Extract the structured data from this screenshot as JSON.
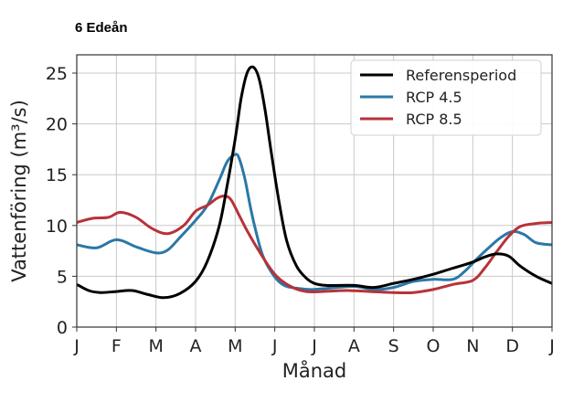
{
  "title": "6 Edeån",
  "chart_data": {
    "type": "line",
    "xlabel": "Månad",
    "ylabel": "Vattenföring (m³/s)",
    "x_ticks": [
      "J",
      "F",
      "M",
      "A",
      "M",
      "J",
      "J",
      "A",
      "S",
      "O",
      "N",
      "D",
      "J"
    ],
    "xlim": [
      0,
      12
    ],
    "ylim": [
      0,
      26.8
    ],
    "y_ticks": [
      0,
      5,
      10,
      15,
      20,
      25
    ],
    "grid": true,
    "legend_position": "top-right",
    "series": [
      {
        "name": "Referensperiod",
        "color": "#000000",
        "x": [
          0,
          0.3,
          0.6,
          1.0,
          1.4,
          1.8,
          2.2,
          2.6,
          3.0,
          3.3,
          3.6,
          3.8,
          4.0,
          4.15,
          4.3,
          4.45,
          4.6,
          4.75,
          4.9,
          5.1,
          5.3,
          5.55,
          5.8,
          6.0,
          6.3,
          7.0,
          7.5,
          8.0,
          8.5,
          9.0,
          9.5,
          10.0,
          10.3,
          10.6,
          10.9,
          11.2,
          11.6,
          12.0
        ],
        "values": [
          4.2,
          3.6,
          3.4,
          3.5,
          3.6,
          3.2,
          2.9,
          3.3,
          4.5,
          6.5,
          10.0,
          14.0,
          18.5,
          22.5,
          25.0,
          25.6,
          24.5,
          21.5,
          17.5,
          12.5,
          8.5,
          6.0,
          4.8,
          4.3,
          4.1,
          4.1,
          3.9,
          4.3,
          4.7,
          5.2,
          5.8,
          6.4,
          6.9,
          7.2,
          7.0,
          6.0,
          5.0,
          4.3
        ]
      },
      {
        "name": "RCP 4.5",
        "color": "#2a78a6",
        "x": [
          0,
          0.5,
          1.0,
          1.5,
          2.0,
          2.3,
          2.6,
          3.0,
          3.3,
          3.6,
          3.8,
          4.0,
          4.1,
          4.25,
          4.4,
          4.55,
          4.7,
          4.9,
          5.1,
          5.3,
          5.6,
          5.9,
          6.3,
          7.0,
          7.5,
          8.0,
          8.5,
          9.0,
          9.5,
          9.8,
          10.1,
          10.4,
          10.7,
          11.0,
          11.3,
          11.6,
          12.0
        ],
        "values": [
          8.1,
          7.8,
          8.6,
          7.9,
          7.3,
          7.6,
          8.8,
          10.5,
          12.0,
          14.5,
          16.3,
          17.0,
          16.6,
          14.5,
          11.5,
          9.0,
          7.0,
          5.5,
          4.5,
          4.0,
          3.8,
          3.7,
          3.8,
          4.0,
          3.7,
          3.9,
          4.5,
          4.7,
          4.7,
          5.5,
          6.7,
          7.8,
          8.8,
          9.4,
          9.1,
          8.3,
          8.1
        ]
      },
      {
        "name": "RCP 8.5",
        "color": "#b83238",
        "x": [
          0,
          0.4,
          0.8,
          1.1,
          1.5,
          1.9,
          2.3,
          2.7,
          3.0,
          3.3,
          3.55,
          3.75,
          3.9,
          4.1,
          4.3,
          4.6,
          5.0,
          5.4,
          5.8,
          6.2,
          6.8,
          7.4,
          8.0,
          8.5,
          9.0,
          9.5,
          10.0,
          10.3,
          10.6,
          10.9,
          11.2,
          11.6,
          12.0
        ],
        "values": [
          10.3,
          10.7,
          10.8,
          11.3,
          10.8,
          9.7,
          9.2,
          10.0,
          11.4,
          12.0,
          12.7,
          12.9,
          12.5,
          11.0,
          9.5,
          7.5,
          5.2,
          4.0,
          3.5,
          3.5,
          3.6,
          3.5,
          3.4,
          3.4,
          3.7,
          4.2,
          4.6,
          5.8,
          7.4,
          8.9,
          9.9,
          10.2,
          10.3
        ]
      }
    ]
  }
}
